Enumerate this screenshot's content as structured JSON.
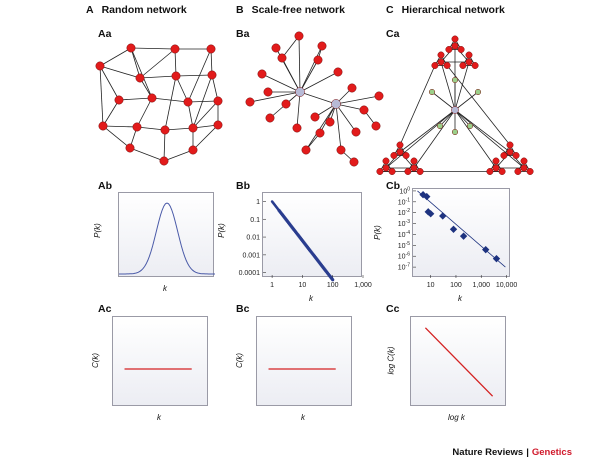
{
  "columns": [
    {
      "letter": "A",
      "title": "Random network"
    },
    {
      "letter": "B",
      "title": "Scale-free network"
    },
    {
      "letter": "C",
      "title": "Hierarchical network"
    }
  ],
  "panels": {
    "Aa": "Aa",
    "Ba": "Ba",
    "Ca": "Ca",
    "Ab": "Ab",
    "Bb": "Bb",
    "Cb": "Cb",
    "Ac": "Ac",
    "Bc": "Bc",
    "Cc": "Cc"
  },
  "axes": {
    "Ab": {
      "ylabel": "P(k)",
      "xlabel": "k"
    },
    "Bb": {
      "ylabel": "P(k)",
      "xlabel": "k",
      "yticks": [
        "1",
        "0.1",
        "0.01",
        "0.001",
        "0.0001"
      ],
      "xticks": [
        "1",
        "10",
        "100",
        "1,000"
      ]
    },
    "Cb": {
      "ylabel": "P(k)",
      "xlabel": "k",
      "yticks": [
        "10^0",
        "10^-1",
        "10^-2",
        "10^-3",
        "10^-4",
        "10^-5",
        "10^-6",
        "10^-7"
      ],
      "xticks": [
        "10",
        "100",
        "1,000",
        "10,000"
      ]
    },
    "Ac": {
      "ylabel": "C(k)",
      "xlabel": "k"
    },
    "Bc": {
      "ylabel": "C(k)",
      "xlabel": "k"
    },
    "Cc": {
      "ylabel": "log C(k)",
      "xlabel": "log k"
    }
  },
  "chart_data": [
    {
      "panel": "Ab",
      "type": "line",
      "shape": "gaussian",
      "mean_frac": 0.5,
      "sd_frac": 0.11,
      "color": "#4a5aa8"
    },
    {
      "panel": "Bb",
      "type": "scatter",
      "x_scale": "log",
      "y_scale": "log",
      "xlim": [
        0.5,
        1000
      ],
      "ylim": [
        5e-05,
        3
      ],
      "power_law_exponent": -2.2,
      "x_range": [
        1,
        100
      ],
      "color": "#2a3d8f"
    },
    {
      "panel": "Cb",
      "type": "scatter",
      "x_scale": "log",
      "y_scale": "log",
      "xlim": [
        2,
        15000
      ],
      "ylim": [
        1e-08,
        1.5
      ],
      "points": [
        [
          5,
          0.45
        ],
        [
          7,
          0.3
        ],
        [
          8,
          0.012
        ],
        [
          10,
          0.008
        ],
        [
          30,
          0.005
        ],
        [
          80,
          0.0003
        ],
        [
          200,
          7e-05
        ],
        [
          1500,
          4e-06
        ],
        [
          4000,
          6e-07
        ]
      ],
      "fit": [
        [
          3,
          1
        ],
        [
          9000,
          1e-07
        ]
      ],
      "color": "#1e3380"
    },
    {
      "panel": "Ac",
      "type": "line",
      "shape": "constant",
      "level_frac": 0.5,
      "color": "#d42121"
    },
    {
      "panel": "Bc",
      "type": "line",
      "shape": "constant",
      "level_frac": 0.5,
      "color": "#d42121"
    },
    {
      "panel": "Cc",
      "type": "line",
      "shape": "decreasing",
      "from": [
        0.15,
        0.12
      ],
      "to": [
        0.85,
        0.88
      ],
      "color": "#d42121"
    }
  ],
  "credit": {
    "publisher": "Nature Reviews",
    "sep": "|",
    "journal": "Genetics"
  },
  "colors": {
    "node": "#e21b1b",
    "hub": "#b7bad6",
    "green": "#9bd08a",
    "edge": "#222222"
  }
}
